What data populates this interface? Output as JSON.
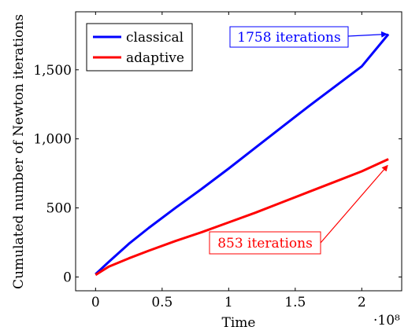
{
  "chart_data": {
    "type": "line",
    "title": "",
    "xlabel": "Time",
    "ylabel": "Cumulated number of Newton iterations",
    "x_multiplier": "·10⁸",
    "xlim": [
      -0.15,
      2.3
    ],
    "ylim": [
      -100,
      1920
    ],
    "x_ticks": [
      0,
      0.5,
      1,
      1.5,
      2
    ],
    "x_tick_labels": [
      "0",
      "0.5",
      "1",
      "1.5",
      "2"
    ],
    "y_ticks": [
      0,
      500,
      1000,
      1500
    ],
    "y_tick_labels": [
      "0",
      "500",
      "1,000",
      "1,500"
    ],
    "legend_position": "top-left",
    "grid": false,
    "series": [
      {
        "name": "classical",
        "color": "#0000ff",
        "x": [
          0,
          0.1,
          0.25,
          0.4,
          0.6,
          0.8,
          1.0,
          1.2,
          1.4,
          1.6,
          1.8,
          2.0,
          2.2
        ],
        "y": [
          20,
          110,
          240,
          355,
          500,
          640,
          785,
          935,
          1085,
          1235,
          1380,
          1525,
          1758
        ]
      },
      {
        "name": "adaptive",
        "color": "#ff0000",
        "x": [
          0,
          0.1,
          0.25,
          0.4,
          0.6,
          0.8,
          1.0,
          1.2,
          1.4,
          1.6,
          1.8,
          2.0,
          2.2
        ],
        "y": [
          15,
          75,
          135,
          190,
          260,
          325,
          395,
          465,
          540,
          615,
          690,
          765,
          853
        ]
      }
    ],
    "annotations": [
      {
        "text": "1758 iterations",
        "color": "#0000ff",
        "series": 0
      },
      {
        "text": "853 iterations",
        "color": "#ff0000",
        "series": 1
      }
    ]
  }
}
